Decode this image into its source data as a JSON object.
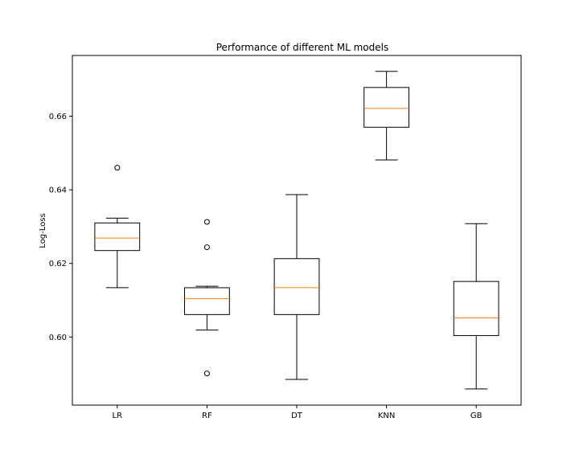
{
  "chart_data": {
    "type": "box",
    "title": "Performance of different ML models",
    "xlabel": "",
    "ylabel": "Log-Loss",
    "ylim": [
      0.5815,
      0.6765
    ],
    "yticks": [
      0.6,
      0.62,
      0.64,
      0.66
    ],
    "ytick_labels": [
      "0.60",
      "0.62",
      "0.64",
      "0.66"
    ],
    "grid": false,
    "categories": [
      "LR",
      "RF",
      "DT",
      "KNN",
      "GB"
    ],
    "boxes": [
      {
        "label": "LR",
        "whislo": 0.6134,
        "q1": 0.6235,
        "median": 0.6269,
        "q3": 0.631,
        "whishi": 0.6323,
        "fliers": [
          0.646
        ]
      },
      {
        "label": "RF",
        "whislo": 0.6019,
        "q1": 0.6061,
        "median": 0.6104,
        "q3": 0.6134,
        "whishi": 0.6138,
        "fliers": [
          0.6313,
          0.6244,
          0.5901
        ]
      },
      {
        "label": "DT",
        "whislo": 0.5885,
        "q1": 0.6061,
        "median": 0.6134,
        "q3": 0.6213,
        "whishi": 0.6387,
        "fliers": []
      },
      {
        "label": "KNN",
        "whislo": 0.6481,
        "q1": 0.657,
        "median": 0.6621,
        "q3": 0.6678,
        "whishi": 0.6722,
        "fliers": []
      },
      {
        "label": "GB",
        "whislo": 0.5859,
        "q1": 0.6004,
        "median": 0.6052,
        "q3": 0.6151,
        "whishi": 0.6308,
        "fliers": []
      }
    ],
    "colors": {
      "box": "#000000",
      "median": "#ff7f0e",
      "background": "#ffffff"
    }
  }
}
